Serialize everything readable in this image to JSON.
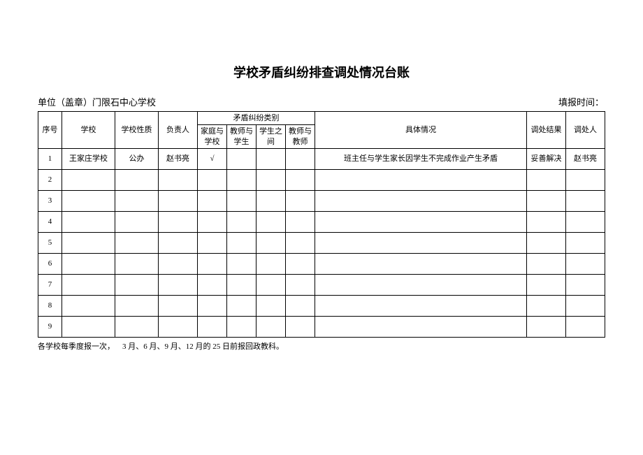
{
  "title": "学校矛盾纠纷排查调处情况台账",
  "header": {
    "unitLabel": "单位（盖章）门限石中心学校",
    "reportTimeLabel": "填报时间：",
    "reportTimeValue": ""
  },
  "columns": {
    "seq": "序号",
    "school": "学校",
    "nature": "学校性质",
    "responsible": "负责人",
    "categoryGroup": "矛盾纠纷类别",
    "catFamily": "家庭与学校",
    "catTeacherStudent": "教师与学生",
    "catStudent": "学生之间",
    "catTeacher": "教师与教师",
    "situation": "具体情况",
    "result": "调处结果",
    "handler": "调处人"
  },
  "rows": [
    {
      "seq": "1",
      "school": "王家庄学校",
      "nature": "公办",
      "responsible": "赵书亮",
      "catFamily": "√",
      "catTeacherStudent": "",
      "catStudent": "",
      "catTeacher": "",
      "situation": "班主任与学生家长因学生不完成作业产生矛盾",
      "result": "妥善解决",
      "handler": "赵书亮"
    },
    {
      "seq": "2",
      "school": "",
      "nature": "",
      "responsible": "",
      "catFamily": "",
      "catTeacherStudent": "",
      "catStudent": "",
      "catTeacher": "",
      "situation": "",
      "result": "",
      "handler": ""
    },
    {
      "seq": "3",
      "school": "",
      "nature": "",
      "responsible": "",
      "catFamily": "",
      "catTeacherStudent": "",
      "catStudent": "",
      "catTeacher": "",
      "situation": "",
      "result": "",
      "handler": ""
    },
    {
      "seq": "4",
      "school": "",
      "nature": "",
      "responsible": "",
      "catFamily": "",
      "catTeacherStudent": "",
      "catStudent": "",
      "catTeacher": "",
      "situation": "",
      "result": "",
      "handler": ""
    },
    {
      "seq": "5",
      "school": "",
      "nature": "",
      "responsible": "",
      "catFamily": "",
      "catTeacherStudent": "",
      "catStudent": "",
      "catTeacher": "",
      "situation": "",
      "result": "",
      "handler": ""
    },
    {
      "seq": "6",
      "school": "",
      "nature": "",
      "responsible": "",
      "catFamily": "",
      "catTeacherStudent": "",
      "catStudent": "",
      "catTeacher": "",
      "situation": "",
      "result": "",
      "handler": ""
    },
    {
      "seq": "7",
      "school": "",
      "nature": "",
      "responsible": "",
      "catFamily": "",
      "catTeacherStudent": "",
      "catStudent": "",
      "catTeacher": "",
      "situation": "",
      "result": "",
      "handler": ""
    },
    {
      "seq": "8",
      "school": "",
      "nature": "",
      "responsible": "",
      "catFamily": "",
      "catTeacherStudent": "",
      "catStudent": "",
      "catTeacher": "",
      "situation": "",
      "result": "",
      "handler": ""
    },
    {
      "seq": "9",
      "school": "",
      "nature": "",
      "responsible": "",
      "catFamily": "",
      "catTeacherStudent": "",
      "catStudent": "",
      "catTeacher": "",
      "situation": "",
      "result": "",
      "handler": ""
    }
  ],
  "footnote": "各学校每季度报一次，    3 月、6 月、9 月、12 月的 25 日前报回政教科。",
  "style": {
    "background": "#ffffff",
    "border": "#000000",
    "text": "#000000",
    "title_fontsize": 18,
    "body_fontsize": 11,
    "header_fontsize": 13
  }
}
